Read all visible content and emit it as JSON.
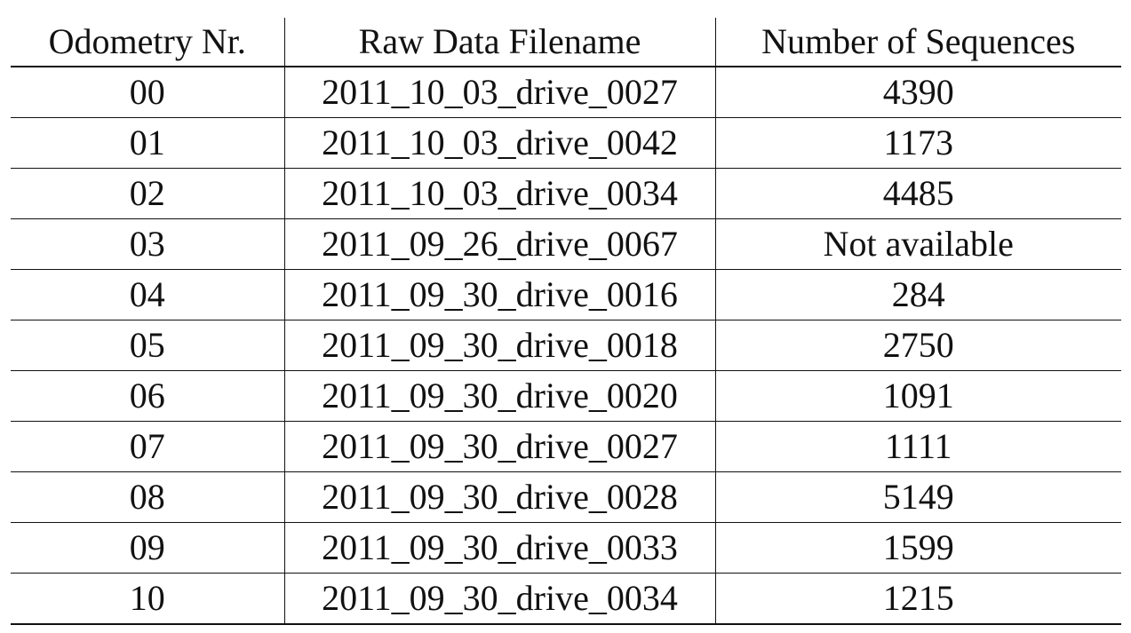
{
  "table": {
    "headers": [
      "Odometry Nr.",
      "Raw Data Filename",
      "Number of Sequences"
    ],
    "rows": [
      [
        "00",
        "2011_10_03_drive_0027",
        "4390"
      ],
      [
        "01",
        "2011_10_03_drive_0042",
        "1173"
      ],
      [
        "02",
        "2011_10_03_drive_0034",
        "4485"
      ],
      [
        "03",
        "2011_09_26_drive_0067",
        "Not available"
      ],
      [
        "04",
        "2011_09_30_drive_0016",
        "284"
      ],
      [
        "05",
        "2011_09_30_drive_0018",
        "2750"
      ],
      [
        "06",
        "2011_09_30_drive_0020",
        "1091"
      ],
      [
        "07",
        "2011_09_30_drive_0027",
        "1111"
      ],
      [
        "08",
        "2011_09_30_drive_0028",
        "5149"
      ],
      [
        "09",
        "2011_09_30_drive_0033",
        "1599"
      ],
      [
        "10",
        "2011_09_30_drive_0034",
        "1215"
      ]
    ]
  }
}
